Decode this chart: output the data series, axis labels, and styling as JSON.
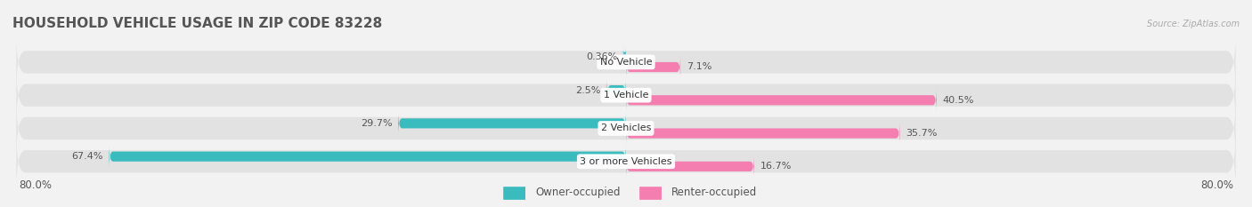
{
  "title": "HOUSEHOLD VEHICLE USAGE IN ZIP CODE 83228",
  "source": "Source: ZipAtlas.com",
  "categories": [
    "No Vehicle",
    "1 Vehicle",
    "2 Vehicles",
    "3 or more Vehicles"
  ],
  "owner_values": [
    0.36,
    2.5,
    29.7,
    67.4
  ],
  "renter_values": [
    7.1,
    40.5,
    35.7,
    16.7
  ],
  "owner_color": "#3abcbf",
  "renter_color": "#f47eb0",
  "owner_label": "Owner-occupied",
  "renter_label": "Renter-occupied",
  "x_min": -80.0,
  "x_max": 80.0,
  "x_left_label": "80.0%",
  "x_right_label": "80.0%",
  "bg_color": "#f2f2f2",
  "bar_bg_color": "#e2e2e2",
  "title_color": "#555555",
  "label_color": "#555555",
  "source_color": "#aaaaaa",
  "title_fontsize": 11,
  "axis_label_fontsize": 8.5,
  "value_fontsize": 8,
  "category_fontsize": 8,
  "legend_fontsize": 8.5
}
